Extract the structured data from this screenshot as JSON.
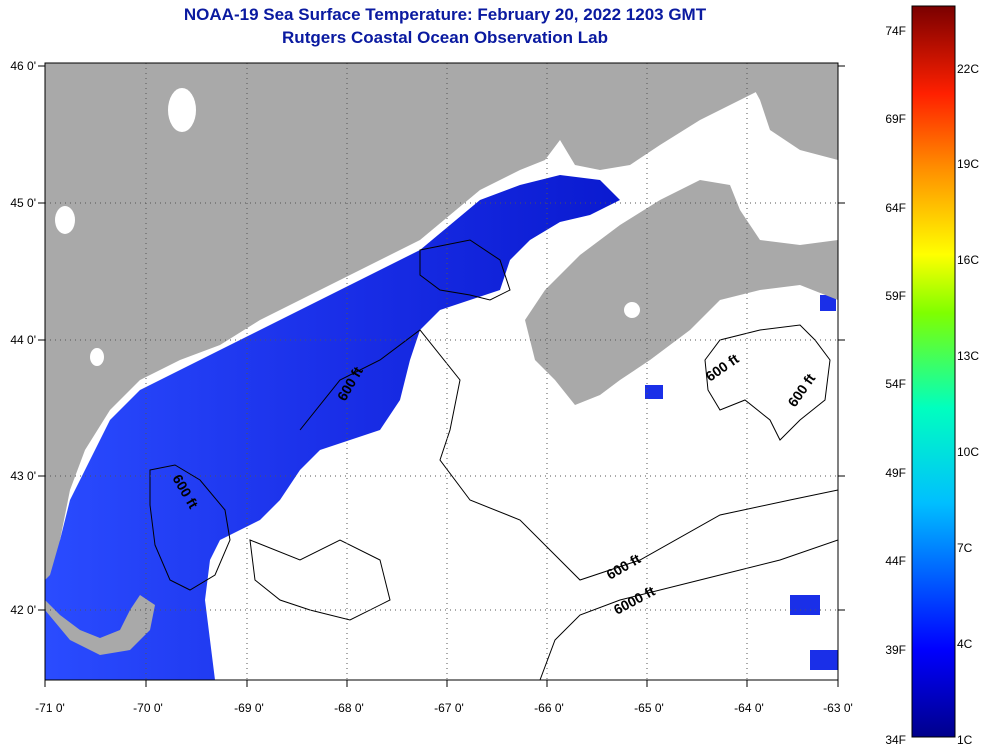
{
  "title": {
    "line1": "NOAA-19 Sea Surface Temperature:  February 20, 2022 1203 GMT",
    "line2": "Rutgers Coastal Ocean Observation Lab"
  },
  "colors": {
    "land": "#a9a9a9",
    "ocean_nodata": "#ffffff",
    "contour": "#000000",
    "title": "#0a1aa0"
  },
  "longitude_labels": [
    "-71 0'",
    "-70 0'",
    "-69 0'",
    "-68 0'",
    "-67 0'",
    "-66 0'",
    "-65 0'",
    "-64 0'",
    "-63 0'"
  ],
  "latitude_labels": [
    "46 0'",
    "45 0'",
    "44 0'",
    "43 0'",
    "42 0'"
  ],
  "contour_labels": [
    "600 ft",
    "600 ft",
    "600 ft",
    "600 ft",
    "600 ft",
    "6000 ft"
  ],
  "colorbar": {
    "fahrenheit_labels": [
      "74F",
      "69F",
      "64F",
      "59F",
      "54F",
      "49F",
      "44F",
      "39F",
      "34F"
    ],
    "celsius_labels": [
      "22C",
      "19C",
      "16C",
      "13C",
      "10C",
      "7C",
      "4C",
      "1C"
    ]
  }
}
